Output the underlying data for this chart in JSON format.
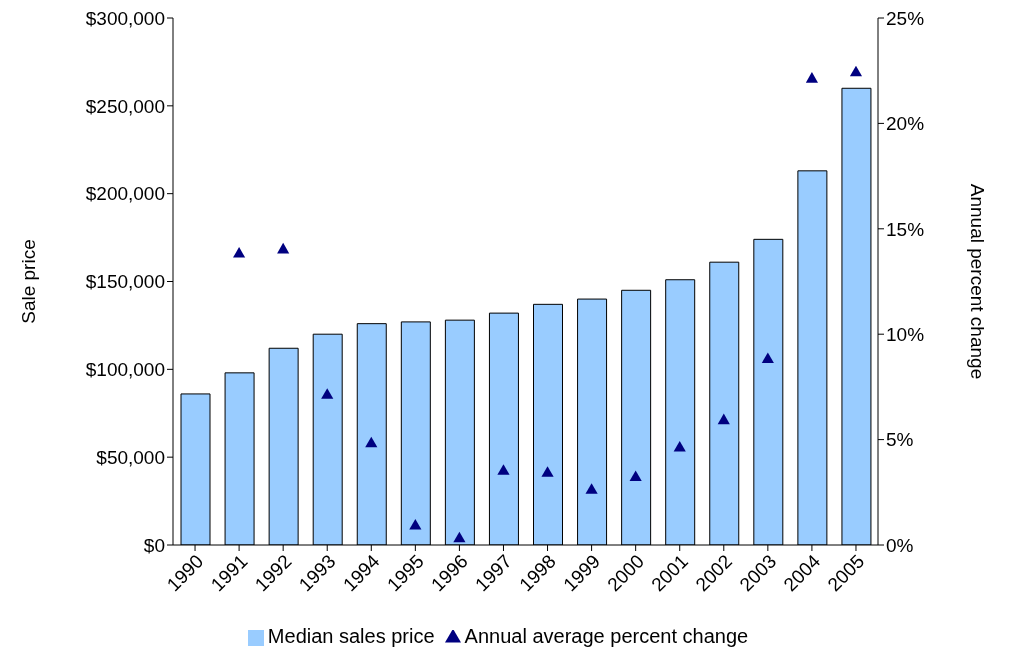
{
  "chart_data": {
    "type": "bar",
    "ylabel": "Sale price",
    "y2label": "Annual percent change",
    "categories": [
      "1990",
      "1991",
      "1992",
      "1993",
      "1994",
      "1995",
      "1996",
      "1997",
      "1998",
      "1999",
      "2000",
      "2001",
      "2002",
      "2003",
      "2004",
      "2005"
    ],
    "series": [
      {
        "name": "Median sales price",
        "color": "#99ccff",
        "values": [
          86000,
          98000,
          112000,
          120000,
          126000,
          127000,
          128000,
          132000,
          137000,
          140000,
          145000,
          151000,
          161000,
          174000,
          213000,
          260000
        ]
      },
      {
        "name": "Annual average percent change",
        "type": "scatter",
        "axis": "y2",
        "marker": "triangle",
        "color": "#000080",
        "values": [
          null,
          13.8,
          14.0,
          7.1,
          4.8,
          0.9,
          0.3,
          3.5,
          3.4,
          2.6,
          3.2,
          4.6,
          5.9,
          8.8,
          22.1,
          22.4
        ]
      }
    ],
    "ylim": [
      0,
      300000
    ],
    "yticks": [
      {
        "value": 0,
        "label": "$0"
      },
      {
        "value": 50000,
        "label": "$50,000"
      },
      {
        "value": 100000,
        "label": "$100,000"
      },
      {
        "value": 150000,
        "label": "$150,000"
      },
      {
        "value": 200000,
        "label": "$200,000"
      },
      {
        "value": 250000,
        "label": "$250,000"
      },
      {
        "value": 300000,
        "label": "$300,000"
      }
    ],
    "y2lim": [
      0,
      25
    ],
    "y2ticks": [
      {
        "value": 0,
        "label": "0%"
      },
      {
        "value": 5,
        "label": "5%"
      },
      {
        "value": 10,
        "label": "10%"
      },
      {
        "value": 15,
        "label": "15%"
      },
      {
        "value": 20,
        "label": "20%"
      },
      {
        "value": 25,
        "label": "25%"
      }
    ],
    "grid": false,
    "legend": "bottom"
  }
}
